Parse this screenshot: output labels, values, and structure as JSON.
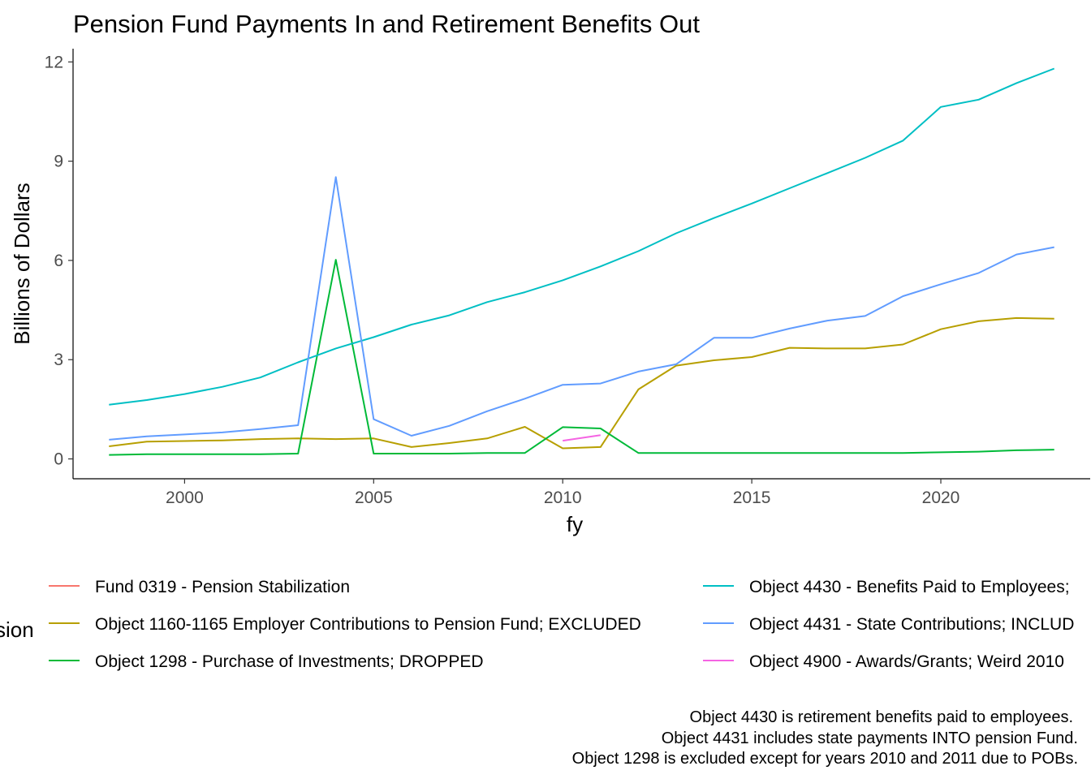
{
  "chart_data": {
    "type": "line",
    "title": "Pension Fund Payments In and Retirement Benefits Out",
    "xlabel": "fy",
    "ylabel": "Billions of Dollars",
    "xlim": [
      1997.05,
      2023.95
    ],
    "ylim": [
      -0.6,
      12.4
    ],
    "x_ticks": [
      2000,
      2005,
      2010,
      2015,
      2020
    ],
    "y_ticks": [
      0,
      3,
      6,
      9,
      12
    ],
    "grid": false,
    "legend": {
      "title": "sion",
      "position": "bottom",
      "columns": 2
    },
    "series": [
      {
        "name": "Fund 0319 - Pension Stabilization",
        "color": "#F8766D",
        "x": [],
        "values": []
      },
      {
        "name": "Object 1160-1165 Employer Contributions to Pension Fund; EXCLUDED",
        "color": "#B79F00",
        "x": [
          1998,
          1999,
          2000,
          2001,
          2002,
          2003,
          2004,
          2005,
          2006,
          2007,
          2008,
          2009,
          2010,
          2011,
          2012,
          2013,
          2014,
          2015,
          2016,
          2017,
          2018,
          2019,
          2020,
          2021,
          2022,
          2023
        ],
        "values": [
          0.38,
          0.52,
          0.54,
          0.56,
          0.6,
          0.62,
          0.6,
          0.62,
          0.36,
          0.48,
          0.62,
          0.97,
          0.32,
          0.36,
          2.1,
          2.82,
          2.98,
          3.08,
          3.36,
          3.34,
          3.34,
          3.46,
          3.92,
          4.16,
          4.26,
          4.24
        ]
      },
      {
        "name": "Object 1298 - Purchase of Investments; DROPPED",
        "color": "#00BA38",
        "x": [
          1998,
          1999,
          2000,
          2001,
          2002,
          2003,
          2004,
          2005,
          2006,
          2007,
          2008,
          2009,
          2010,
          2011,
          2012,
          2013,
          2014,
          2015,
          2016,
          2017,
          2018,
          2019,
          2020,
          2021,
          2022,
          2023
        ],
        "values": [
          0.12,
          0.14,
          0.14,
          0.14,
          0.14,
          0.16,
          6.02,
          0.16,
          0.16,
          0.16,
          0.18,
          0.18,
          0.96,
          0.92,
          0.18,
          0.18,
          0.18,
          0.18,
          0.18,
          0.18,
          0.18,
          0.18,
          0.2,
          0.22,
          0.26,
          0.28
        ]
      },
      {
        "name": "Object 4430 - Benefits Paid to Employees;",
        "color": "#00BFC4",
        "x": [
          1998,
          1999,
          2000,
          2001,
          2002,
          2003,
          2004,
          2005,
          2006,
          2007,
          2008,
          2009,
          2010,
          2011,
          2012,
          2013,
          2014,
          2015,
          2016,
          2017,
          2018,
          2019,
          2020,
          2021,
          2022,
          2023
        ],
        "values": [
          1.64,
          1.78,
          1.96,
          2.18,
          2.46,
          2.92,
          3.34,
          3.68,
          4.06,
          4.34,
          4.74,
          5.04,
          5.4,
          5.82,
          6.28,
          6.82,
          7.28,
          7.72,
          8.18,
          8.64,
          9.1,
          9.62,
          10.64,
          10.86,
          11.36,
          11.8
        ]
      },
      {
        "name": "Object 4431 - State Contributions; INCLUD",
        "color": "#619CFF",
        "x": [
          1998,
          1999,
          2000,
          2001,
          2002,
          2003,
          2004,
          2005,
          2006,
          2007,
          2008,
          2009,
          2010,
          2011,
          2012,
          2013,
          2014,
          2015,
          2016,
          2017,
          2018,
          2019,
          2020,
          2021,
          2022,
          2023
        ],
        "values": [
          0.58,
          0.68,
          0.74,
          0.8,
          0.9,
          1.02,
          8.52,
          1.2,
          0.7,
          1.0,
          1.44,
          1.82,
          2.24,
          2.28,
          2.64,
          2.86,
          3.66,
          3.66,
          3.94,
          4.18,
          4.32,
          4.92,
          5.28,
          5.62,
          6.18,
          6.4
        ]
      },
      {
        "name": "Object 4900 - Awards/Grants; Weird 2010",
        "color": "#F564E3",
        "x": [
          2010,
          2011
        ],
        "values": [
          0.55,
          0.72
        ]
      }
    ],
    "caption": [
      "Object 4430 is retirement benefits paid to employees.",
      "Object 4431 includes state payments INTO pension Fund.",
      "Object 1298 is excluded except for years 2010 and 2011 due to POBs."
    ]
  }
}
